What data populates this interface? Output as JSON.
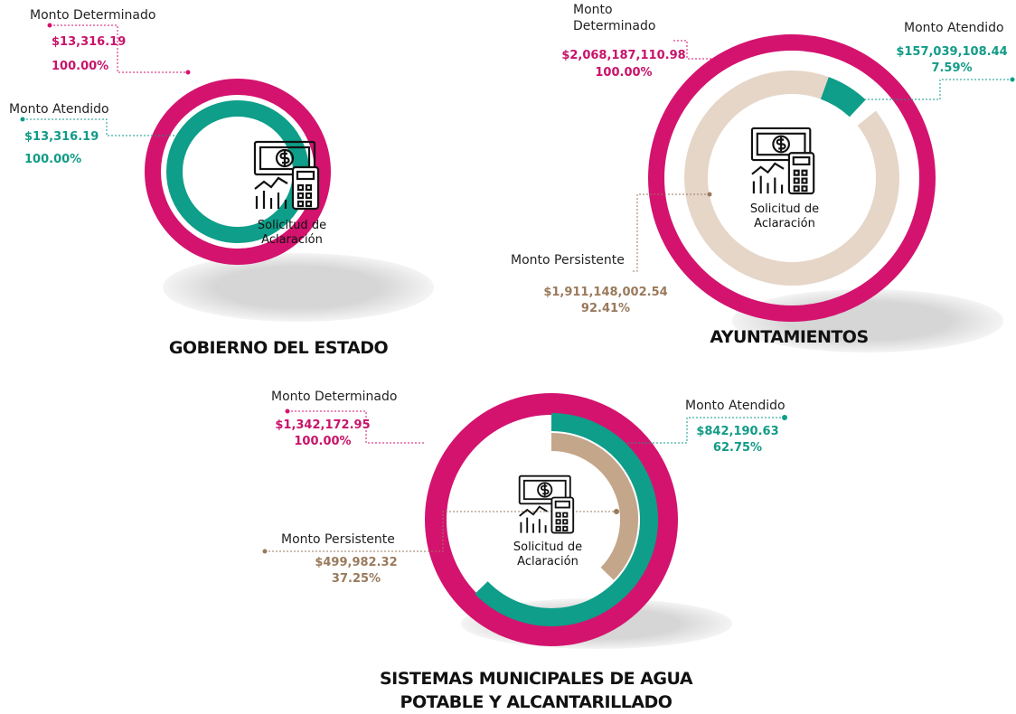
{
  "chart_data": [
    {
      "type": "radial",
      "title": "GOBIERNO DEL ESTADO",
      "center_label": "Solicitud de Aclaración",
      "series": [
        {
          "name": "Monto Determinado",
          "color": "#d4136f",
          "value": 13316.19,
          "value_label": "$13,316.19",
          "percent": 100,
          "percent_label": "100.00%"
        },
        {
          "name": "Monto Atendido",
          "color": "#0e9e89",
          "value": 13316.19,
          "value_label": "$13,316.19",
          "percent": 100,
          "percent_label": "100.00%"
        }
      ]
    },
    {
      "type": "radial",
      "title": "AYUNTAMIENTOS",
      "center_label": "Solicitud de Aclaración",
      "series": [
        {
          "name": "Monto Determinado",
          "color": "#d4136f",
          "value": 2068187110.98,
          "value_label": "$2,068,187,110.98",
          "percent": 100,
          "percent_label": "100.00%"
        },
        {
          "name": "Monto Atendido",
          "color": "#0e9e89",
          "value": 157039108.44,
          "value_label": "$157,039,108.44",
          "percent": 7.59,
          "percent_label": "7.59%"
        },
        {
          "name": "Monto Persistente",
          "color": "#e6d6c8",
          "value": 1911148002.54,
          "value_label": "$1,911,148,002.54",
          "percent": 92.41,
          "percent_label": "92.41%"
        }
      ]
    },
    {
      "type": "radial",
      "title": "SISTEMAS MUNICIPALES DE AGUA POTABLE Y ALCANTARILLADO",
      "center_label": "Solicitud de Aclaración",
      "series": [
        {
          "name": "Monto Determinado",
          "color": "#d4136f",
          "value": 1342172.95,
          "value_label": "$1,342,172.95",
          "percent": 100,
          "percent_label": "100.00%"
        },
        {
          "name": "Monto Atendido",
          "color": "#0e9e89",
          "value": 842190.63,
          "value_label": "$842,190.63",
          "percent": 62.75,
          "percent_label": "62.75%"
        },
        {
          "name": "Monto Persistente",
          "color": "#c4a68a",
          "value": 499982.32,
          "value_label": "$499,982.32",
          "percent": 37.25,
          "percent_label": "37.25%"
        }
      ]
    }
  ]
}
